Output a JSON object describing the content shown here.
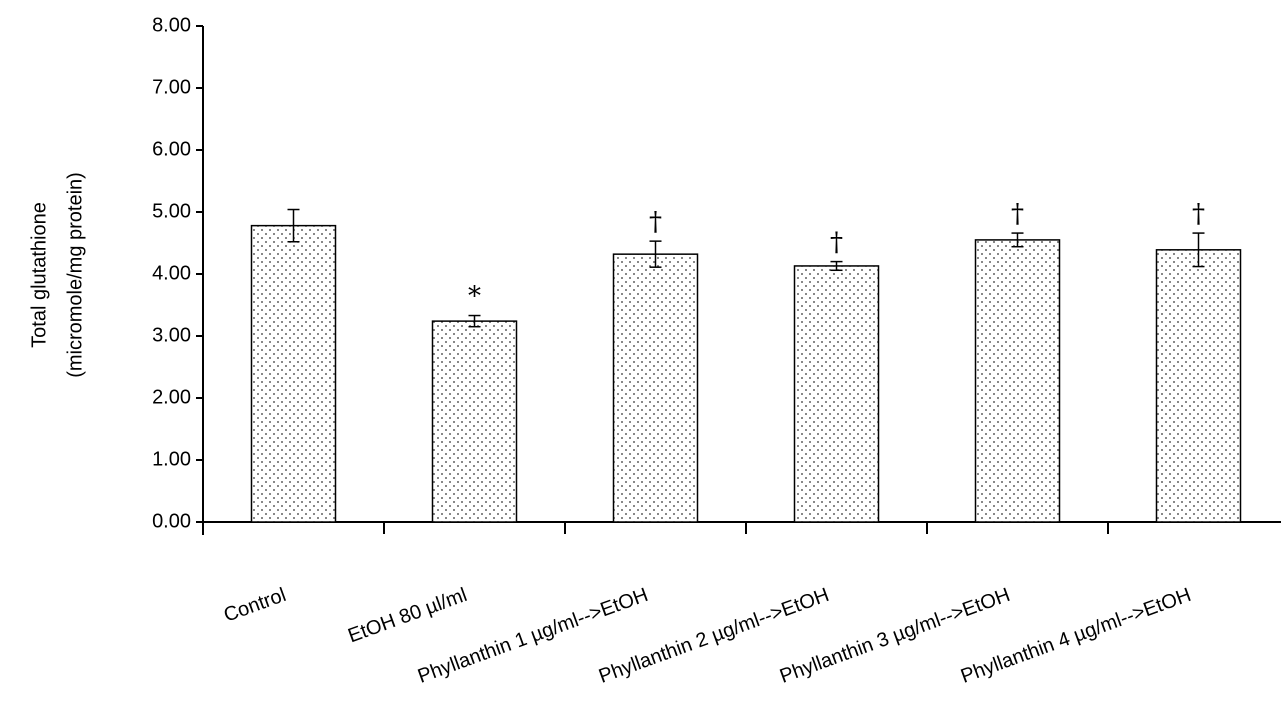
{
  "chart_data": {
    "type": "bar",
    "y_label_lines": [
      "Total glutathione",
      "(micromole/mg protein)"
    ],
    "categories": [
      "Control",
      "EtOH 80  µl/ml",
      "Phyllanthin 1 µg/ml-->EtOH",
      "Phyllanthin 2  µg/ml-->EtOH",
      "Phyllanthin 3  µg/ml-->EtOH",
      "Phyllanthin 4  µg/ml-->EtOH"
    ],
    "values": [
      4.78,
      3.24,
      4.32,
      4.13,
      4.55,
      4.39
    ],
    "errors": [
      0.26,
      0.09,
      0.21,
      0.07,
      0.11,
      0.27
    ],
    "value_annotations": [
      null,
      "*",
      "†",
      "†",
      "†",
      "†"
    ],
    "ylim": [
      0,
      8
    ],
    "yticks": [
      {
        "value": 0,
        "label": "0.00"
      },
      {
        "value": 1,
        "label": "1.00"
      },
      {
        "value": 2,
        "label": "2.00"
      },
      {
        "value": 3,
        "label": "3.00"
      },
      {
        "value": 4,
        "label": "4.00"
      },
      {
        "value": 5,
        "label": "5.00"
      },
      {
        "value": 6,
        "label": "6.00"
      },
      {
        "value": 7,
        "label": "7.00"
      },
      {
        "value": 8,
        "label": "8.00"
      }
    ]
  }
}
